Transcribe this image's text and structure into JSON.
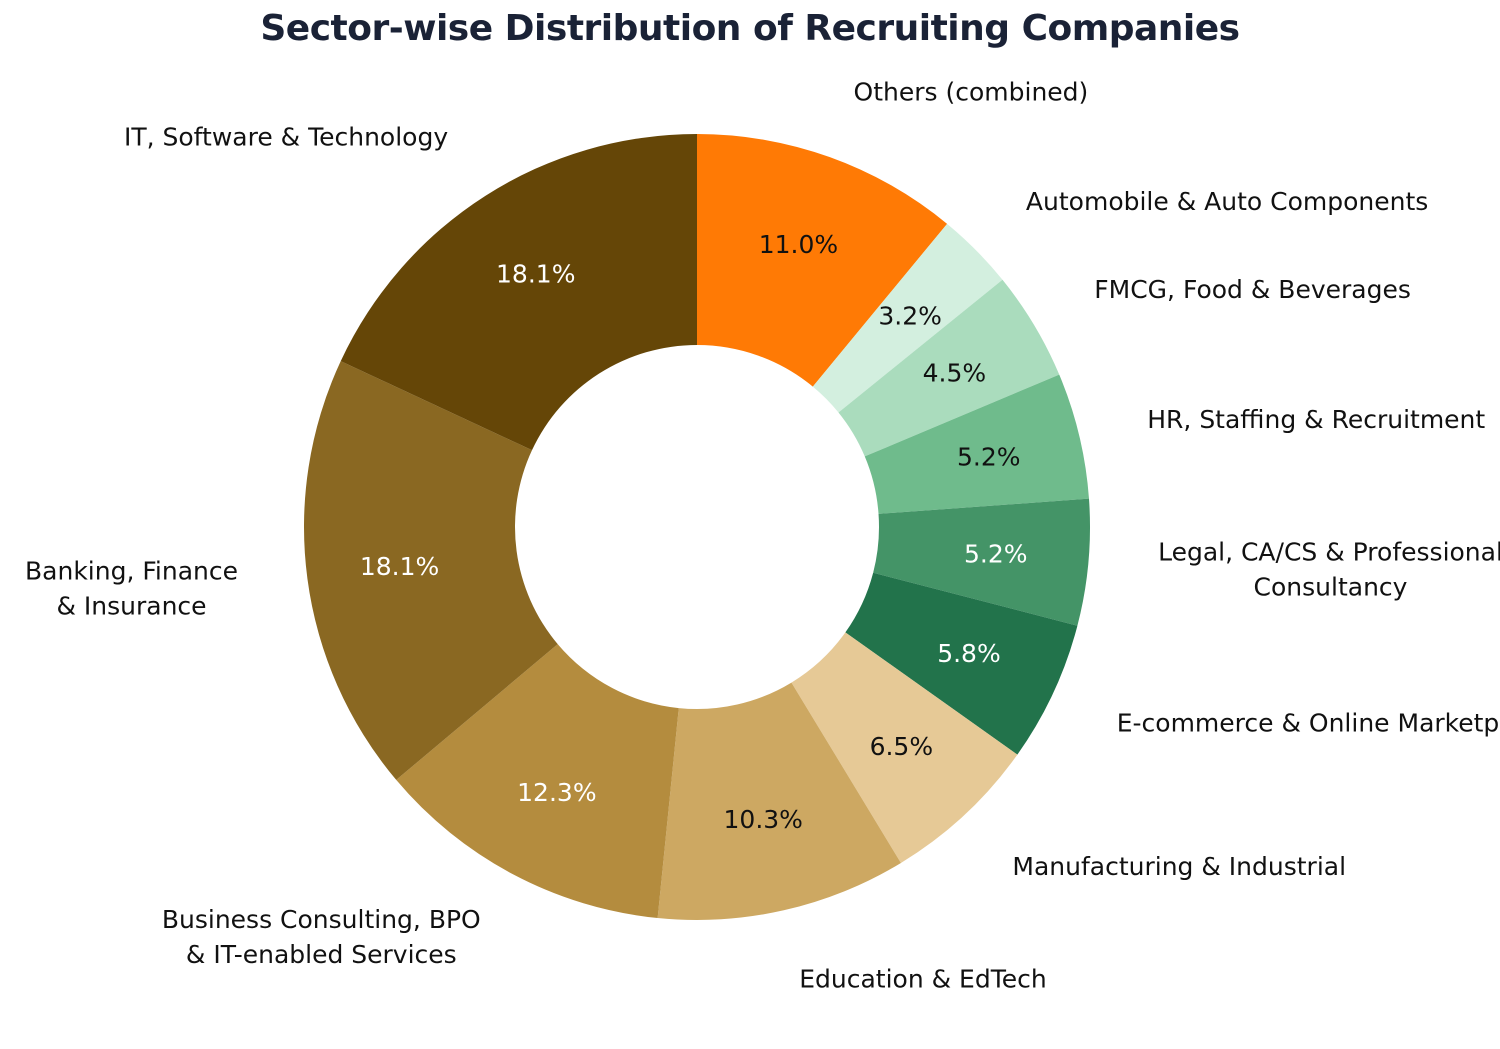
{
  "chart_data": {
    "type": "pie",
    "title": "Sector-wise Distribution of Recruiting Companies",
    "categories": [
      "Others (combined)",
      "Automobile & Auto Components",
      "FMCG, Food & Beverages",
      "HR, Staffing & Recruitment",
      "Legal, CA/CS & Professional Consultancy",
      "E-commerce & Online Marketplaces",
      "Manufacturing & Industrial",
      "Education & EdTech",
      "Business Consulting, BPO & IT-enabled Services",
      "Banking, Finance & Insurance",
      "IT, Software & Technology"
    ],
    "label_lines": [
      [
        "Others (combined)"
      ],
      [
        "Automobile & Auto Components"
      ],
      [
        "FMCG, Food & Beverages"
      ],
      [
        "HR, Staffing & Recruitment"
      ],
      [
        "Legal, CA/CS & Professional",
        "Consultancy"
      ],
      [
        "E-commerce & Online Marketplaces"
      ],
      [
        "Manufacturing & Industrial"
      ],
      [
        "Education & EdTech"
      ],
      [
        "Business Consulting, BPO",
        "& IT-enabled Services"
      ],
      [
        "Banking, Finance",
        "& Insurance"
      ],
      [
        "IT, Software & Technology"
      ]
    ],
    "values": [
      11.0,
      3.2,
      4.5,
      5.2,
      5.2,
      5.8,
      6.5,
      10.3,
      12.3,
      18.1,
      18.1
    ],
    "value_labels": [
      "11.0%",
      "3.2%",
      "4.5%",
      "5.2%",
      "5.2%",
      "5.8%",
      "6.5%",
      "10.3%",
      "12.3%",
      "18.1%",
      "18.1%"
    ],
    "colors": [
      "#ff7a05",
      "#d3efdf",
      "#aadcbd",
      "#6fbb8c",
      "#449467",
      "#22734b",
      "#e6c996",
      "#cda862",
      "#b48c3e",
      "#8a6822",
      "#654607"
    ],
    "label_colors": [
      "#111111",
      "#111111",
      "#111111",
      "#111111",
      "#ffffff",
      "#ffffff",
      "#111111",
      "#111111",
      "#ffffff",
      "#ffffff",
      "#ffffff"
    ],
    "start_angle": "12 o'clock",
    "direction": "clockwise",
    "donut": true,
    "legend": "none"
  }
}
